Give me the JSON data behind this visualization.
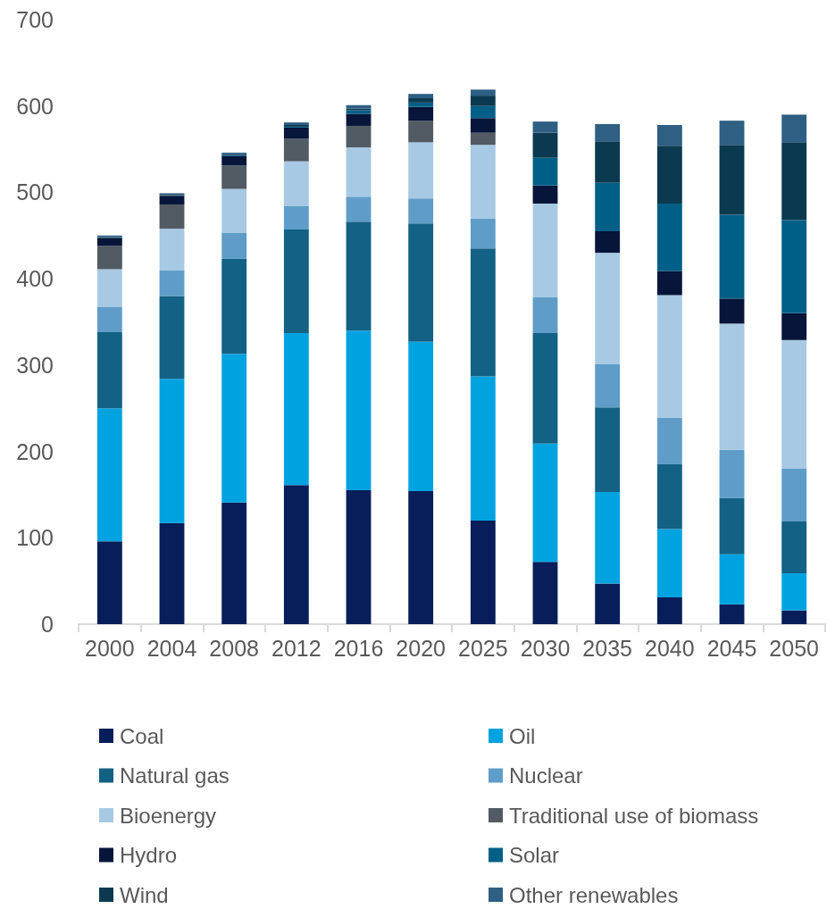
{
  "chart_data": {
    "type": "bar",
    "stacked": true,
    "categories": [
      "2000",
      "2004",
      "2008",
      "2012",
      "2016",
      "2020",
      "2025",
      "2030",
      "2035",
      "2040",
      "2045",
      "2050"
    ],
    "ylim": [
      0,
      700
    ],
    "yticks": [
      0,
      100,
      200,
      300,
      400,
      500,
      600,
      700
    ],
    "grid": false,
    "legend": "bottom",
    "series": [
      {
        "name": "Coal",
        "color": "#071e5a",
        "values": [
          96,
          117,
          141,
          161,
          155,
          154,
          120,
          72,
          47,
          31,
          23,
          16
        ]
      },
      {
        "name": "Oil",
        "color": "#00a3df",
        "values": [
          154,
          167,
          172,
          176,
          185,
          173,
          167,
          137,
          106,
          79,
          58,
          43
        ]
      },
      {
        "name": "Natural gas",
        "color": "#136185",
        "values": [
          88,
          96,
          110,
          120,
          126,
          137,
          148,
          128,
          98,
          75,
          65,
          60
        ]
      },
      {
        "name": "Nuclear",
        "color": "#5f9dc8",
        "values": [
          29,
          30,
          30,
          27,
          29,
          29,
          35,
          42,
          50,
          54,
          56,
          61
        ]
      },
      {
        "name": "Bioenergy",
        "color": "#a7c9e3",
        "values": [
          44,
          48,
          51,
          52,
          57,
          65,
          85,
          108,
          129,
          142,
          146,
          149
        ]
      },
      {
        "name": "Traditional use of biomass",
        "color": "#525a63",
        "values": [
          27,
          28,
          27,
          26,
          25,
          25,
          14,
          0,
          0,
          0,
          0,
          0
        ]
      },
      {
        "name": "Hydro",
        "color": "#061539",
        "values": [
          9,
          10,
          11,
          13,
          14,
          16,
          17,
          21,
          25,
          28,
          29,
          31
        ]
      },
      {
        "name": "Solar",
        "color": "#005f87",
        "values": [
          0,
          0,
          1,
          1,
          4,
          5,
          14,
          32,
          56,
          78,
          97,
          108
        ]
      },
      {
        "name": "Wind",
        "color": "#0b3a50",
        "values": [
          1,
          1,
          1,
          2,
          2,
          5,
          12,
          29,
          48,
          67,
          81,
          90
        ]
      },
      {
        "name": "Other renewables",
        "color": "#2f5f83",
        "values": [
          2,
          2,
          2,
          3,
          4,
          5,
          7,
          13,
          20,
          24,
          28,
          32
        ]
      }
    ]
  }
}
